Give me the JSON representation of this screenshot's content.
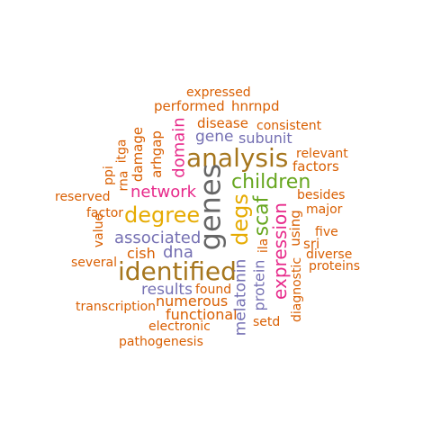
{
  "palette": {
    "orange": "#d95f02",
    "brown": "#a6761d",
    "purple": "#7570b3",
    "pink": "#e7298a",
    "mustard": "#e6ab02",
    "green": "#66a61e",
    "gray": "#666666"
  },
  "words": [
    {
      "text": "expressed",
      "color": "orange"
    },
    {
      "text": "performed",
      "color": "orange"
    },
    {
      "text": "hnrnpd",
      "color": "orange"
    },
    {
      "text": "disease",
      "color": "orange"
    },
    {
      "text": "consistent",
      "color": "orange"
    },
    {
      "text": "gene",
      "color": "purple"
    },
    {
      "text": "subunit",
      "color": "purple"
    },
    {
      "text": "relevant",
      "color": "orange"
    },
    {
      "text": "analysis",
      "color": "brown"
    },
    {
      "text": "factors",
      "color": "orange"
    },
    {
      "text": "children",
      "color": "green"
    },
    {
      "text": "network",
      "color": "pink"
    },
    {
      "text": "besides",
      "color": "orange"
    },
    {
      "text": "reserved",
      "color": "orange"
    },
    {
      "text": "major",
      "color": "orange"
    },
    {
      "text": "factor",
      "color": "orange"
    },
    {
      "text": "degree",
      "color": "mustard"
    },
    {
      "text": "five",
      "color": "orange"
    },
    {
      "text": "associated",
      "color": "purple"
    },
    {
      "text": "sri",
      "color": "orange"
    },
    {
      "text": "cish",
      "color": "orange"
    },
    {
      "text": "dna",
      "color": "purple"
    },
    {
      "text": "diverse",
      "color": "orange"
    },
    {
      "text": "several",
      "color": "orange"
    },
    {
      "text": "proteins",
      "color": "orange"
    },
    {
      "text": "identified",
      "color": "brown"
    },
    {
      "text": "results",
      "color": "purple"
    },
    {
      "text": "found",
      "color": "orange"
    },
    {
      "text": "numerous",
      "color": "orange"
    },
    {
      "text": "transcription",
      "color": "orange"
    },
    {
      "text": "functional",
      "color": "orange"
    },
    {
      "text": "electronic",
      "color": "orange"
    },
    {
      "text": "setd",
      "color": "orange"
    },
    {
      "text": "pathogenesis",
      "color": "orange"
    },
    {
      "text": "genes",
      "color": "gray"
    },
    {
      "text": "degs",
      "color": "mustard"
    },
    {
      "text": "scaf",
      "color": "green"
    },
    {
      "text": "expression",
      "color": "pink"
    },
    {
      "text": "domain",
      "color": "pink"
    },
    {
      "text": "arhgap",
      "color": "orange"
    },
    {
      "text": "damage",
      "color": "orange"
    },
    {
      "text": "itga",
      "color": "orange"
    },
    {
      "text": "rna",
      "color": "orange"
    },
    {
      "text": "ppi",
      "color": "orange"
    },
    {
      "text": "value",
      "color": "orange"
    },
    {
      "text": "melatonin",
      "color": "purple"
    },
    {
      "text": "protein",
      "color": "purple"
    },
    {
      "text": "ila",
      "color": "orange"
    },
    {
      "text": "using",
      "color": "orange"
    },
    {
      "text": "diagnostic",
      "color": "orange"
    }
  ]
}
